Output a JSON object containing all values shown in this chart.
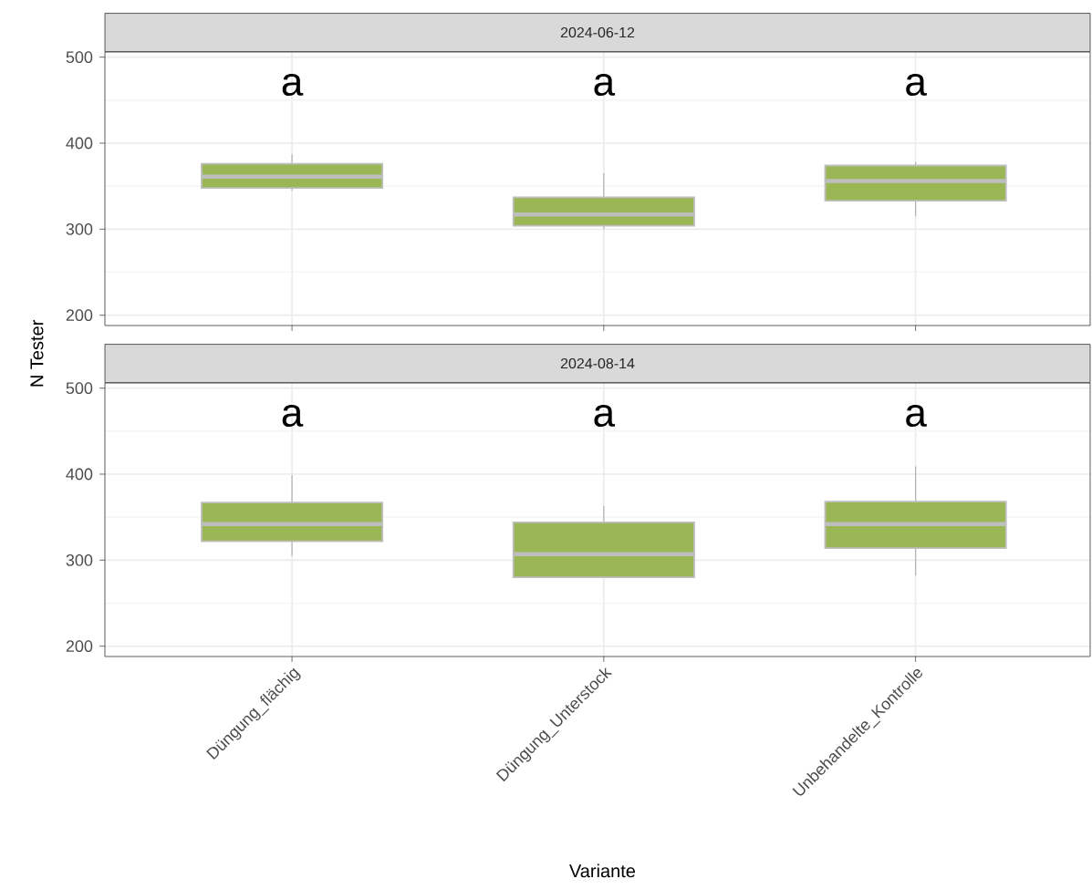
{
  "chart_data": [
    {
      "type": "box",
      "title": "2024-06-12",
      "ylabel": "N Tester",
      "categories": [
        null,
        null,
        null
      ],
      "series": [
        {
          "color": "#9bb755",
          "boxes": [
            {
              "low": 345,
              "q1": 348,
              "median": 361,
              "q3": 376,
              "high": 387
            },
            {
              "low": 300,
              "q1": 304,
              "median": 317,
              "q3": 337,
              "high": 365
            },
            {
              "low": 315,
              "q1": 333,
              "median": 356,
              "q3": 374,
              "high": 378
            }
          ]
        }
      ],
      "ylim": [
        188,
        506
      ],
      "yticks": [
        200,
        {
          "value": 250,
          "label": null
        },
        300,
        {
          "value": 350,
          "label": null
        },
        400,
        {
          "value": 450,
          "label": null
        },
        500
      ],
      "grid": true,
      "tick_labels": "y",
      "annotations": [
        "a",
        "a",
        "a"
      ]
    },
    {
      "type": "box",
      "title": "2024-08-14",
      "xlabel": "Variante",
      "categories": [
        "Düngung_flächig",
        "Düngung_Unterstock",
        "Unbehandelte_Kontrolle"
      ],
      "series": [
        {
          "color": "#9bb755",
          "boxes": [
            {
              "low": 305,
              "q1": 322,
              "median": 342,
              "q3": 367,
              "high": 399
            },
            {
              "low": 280,
              "q1": 280,
              "median": 307,
              "q3": 344,
              "high": 363
            },
            {
              "low": 282,
              "q1": 314,
              "median": 342,
              "q3": 368,
              "high": 409
            }
          ]
        }
      ],
      "ylim": [
        188,
        506
      ],
      "yticks": [
        200,
        {
          "value": 250,
          "label": null
        },
        300,
        {
          "value": 350,
          "label": null
        },
        400,
        {
          "value": 450,
          "label": null
        },
        500
      ],
      "grid": true,
      "annotations": [
        "a",
        "a",
        "a"
      ]
    }
  ]
}
